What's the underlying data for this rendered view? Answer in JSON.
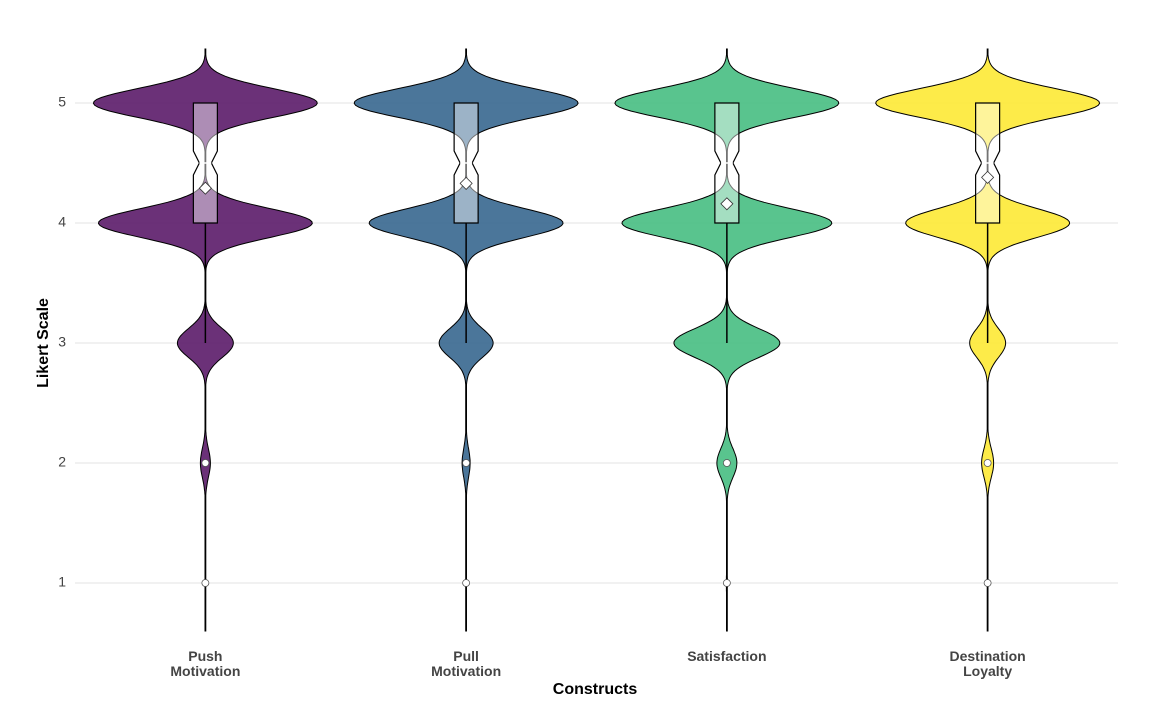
{
  "chart_data": {
    "type": "violin",
    "x_label": "Constructs",
    "y_label": "Likert Scale",
    "levels": [
      1,
      2,
      3,
      4,
      5
    ],
    "ylim": [
      0.5,
      5.5
    ],
    "yticks": [
      1,
      2,
      3,
      4,
      5
    ],
    "grid": true,
    "series": [
      {
        "name": "Push Motivation",
        "color": "#5e1f6c",
        "density": [
          0.3,
          5,
          28,
          107,
          112
        ],
        "q1": 4,
        "median": 4.5,
        "q3": 5,
        "whisker_low": 3,
        "whisker_high": 5,
        "mean": 4.29,
        "outliers": [
          1,
          2
        ]
      },
      {
        "name": "Pull Motivation",
        "color": "#3c6a91",
        "density": [
          0.3,
          4,
          27,
          97,
          112
        ],
        "q1": 4,
        "median": 4.5,
        "q3": 5,
        "whisker_low": 3,
        "whisker_high": 5,
        "mean": 4.33,
        "outliers": [
          1,
          2
        ]
      },
      {
        "name": "Satisfaction",
        "color": "#4bbf84",
        "density": [
          0.5,
          10,
          53,
          105,
          112
        ],
        "q1": 4,
        "median": 4.5,
        "q3": 5,
        "whisker_low": 3,
        "whisker_high": 5,
        "mean": 4.16,
        "outliers": [
          1,
          2
        ]
      },
      {
        "name": "Destination Loyalty",
        "color": "#fde93a",
        "density": [
          0.3,
          6,
          18,
          82,
          112
        ],
        "q1": 4,
        "median": 4.5,
        "q3": 5,
        "whisker_low": 3,
        "whisker_high": 5,
        "mean": 4.38,
        "outliers": [
          1,
          2
        ]
      }
    ]
  }
}
